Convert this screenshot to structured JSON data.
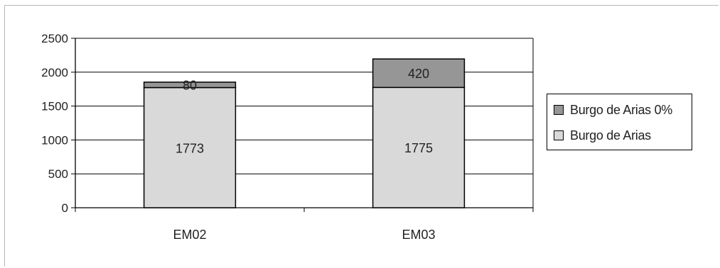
{
  "chart_data": {
    "type": "bar",
    "stacked": true,
    "categories": [
      "EM02",
      "EM03"
    ],
    "series": [
      {
        "name": "Burgo de Arias",
        "values": [
          1773,
          1775
        ],
        "color": "#d9d9d9"
      },
      {
        "name": "Burgo de Arias 0%",
        "values": [
          80,
          420
        ],
        "color": "#969696"
      }
    ],
    "data_labels": [
      [
        "1773",
        "1775"
      ],
      [
        "80",
        "420"
      ]
    ],
    "ylim": [
      0,
      2500
    ],
    "yticks": [
      "0",
      "500",
      "1000",
      "1500",
      "2000",
      "2500"
    ],
    "grid": true,
    "legend_position": "right",
    "title": "",
    "xlabel": "",
    "ylabel": ""
  }
}
